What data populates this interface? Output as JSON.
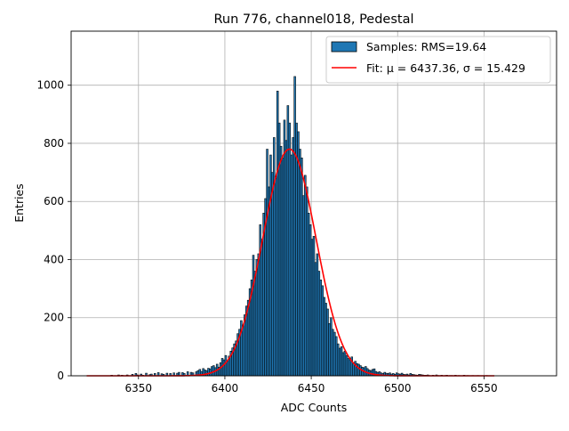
{
  "chart_data": {
    "type": "histogram",
    "title": "Run 776, channel018, Pedestal",
    "xlabel": "ADC Counts",
    "ylabel": "Entries",
    "xlim": [
      6311,
      6592
    ],
    "ylim": [
      0,
      1186
    ],
    "xticks": [
      6350,
      6400,
      6450,
      6500,
      6550
    ],
    "yticks": [
      0,
      200,
      400,
      600,
      800,
      1000
    ],
    "grid": true,
    "legend_position": "top-right",
    "bar_color": "#1f77b4",
    "fit_color": "#ff0000",
    "histogram": {
      "name": "Samples: RMS=19.64",
      "bin_width": 1,
      "bin_starts": [
        6334,
        6335,
        6336,
        6337,
        6338,
        6339,
        6340,
        6341,
        6342,
        6343,
        6344,
        6345,
        6346,
        6347,
        6348,
        6349,
        6350,
        6351,
        6352,
        6353,
        6354,
        6355,
        6356,
        6357,
        6358,
        6359,
        6360,
        6361,
        6362,
        6363,
        6364,
        6365,
        6366,
        6367,
        6368,
        6369,
        6370,
        6371,
        6372,
        6373,
        6374,
        6375,
        6376,
        6377,
        6378,
        6379,
        6380,
        6381,
        6382,
        6383,
        6384,
        6385,
        6386,
        6387,
        6388,
        6389,
        6390,
        6391,
        6392,
        6393,
        6394,
        6395,
        6396,
        6397,
        6398,
        6399,
        6400,
        6401,
        6402,
        6403,
        6404,
        6405,
        6406,
        6407,
        6408,
        6409,
        6410,
        6411,
        6412,
        6413,
        6414,
        6415,
        6416,
        6417,
        6418,
        6419,
        6420,
        6421,
        6422,
        6423,
        6424,
        6425,
        6426,
        6427,
        6428,
        6429,
        6430,
        6431,
        6432,
        6433,
        6434,
        6435,
        6436,
        6437,
        6438,
        6439,
        6440,
        6441,
        6442,
        6443,
        6444,
        6445,
        6446,
        6447,
        6448,
        6449,
        6450,
        6451,
        6452,
        6453,
        6454,
        6455,
        6456,
        6457,
        6458,
        6459,
        6460,
        6461,
        6462,
        6463,
        6464,
        6465,
        6466,
        6467,
        6468,
        6469,
        6470,
        6471,
        6472,
        6473,
        6474,
        6475,
        6476,
        6477,
        6478,
        6479,
        6480,
        6481,
        6482,
        6483,
        6484,
        6485,
        6486,
        6487,
        6488,
        6489,
        6490,
        6491,
        6492,
        6493,
        6494,
        6495,
        6496,
        6497,
        6498,
        6499,
        6500,
        6501,
        6502,
        6503,
        6504,
        6505,
        6506,
        6507,
        6508,
        6509,
        6510,
        6511,
        6512,
        6513,
        6514,
        6515,
        6516,
        6517,
        6518,
        6519,
        6520,
        6521,
        6522,
        6523,
        6524,
        6525,
        6526,
        6527,
        6528,
        6529,
        6530,
        6531,
        6532,
        6533,
        6534,
        6535,
        6536,
        6537,
        6538,
        6539,
        6540,
        6541,
        6542,
        6543,
        6544,
        6545,
        6546,
        6547,
        6548,
        6549,
        6550,
        6551,
        6552,
        6553,
        6554,
        6555,
        6556,
        6557,
        6558,
        6559,
        6560,
        6561,
        6562,
        6563,
        6564,
        6565,
        6566,
        6567,
        6568,
        6569,
        6570,
        6571,
        6572,
        6573,
        6574,
        6575,
        6576,
        6577,
        6578,
        6579,
        6580,
        6581
      ],
      "counts": [
        2,
        0,
        0,
        0,
        3,
        0,
        2,
        0,
        0,
        3,
        0,
        0,
        5,
        0,
        8,
        3,
        0,
        6,
        2,
        0,
        9,
        0,
        4,
        6,
        0,
        8,
        0,
        11,
        0,
        7,
        5,
        0,
        9,
        0,
        8,
        0,
        10,
        0,
        9,
        12,
        0,
        11,
        8,
        0,
        14,
        0,
        12,
        10,
        0,
        14,
        18,
        22,
        15,
        25,
        20,
        18,
        26,
        24,
        32,
        35,
        28,
        40,
        30,
        45,
        60,
        55,
        70,
        52,
        68,
        85,
        96,
        110,
        120,
        145,
        160,
        190,
        175,
        210,
        240,
        260,
        300,
        330,
        415,
        360,
        400,
        420,
        520,
        470,
        560,
        610,
        780,
        650,
        760,
        700,
        820,
        680,
        980,
        870,
        790,
        750,
        880,
        810,
        930,
        870,
        760,
        820,
        1030,
        870,
        840,
        780,
        750,
        620,
        690,
        650,
        560,
        520,
        470,
        480,
        390,
        420,
        360,
        330,
        310,
        270,
        250,
        230,
        180,
        200,
        160,
        150,
        135,
        110,
        95,
        100,
        80,
        85,
        70,
        60,
        55,
        65,
        45,
        50,
        42,
        40,
        35,
        30,
        28,
        32,
        25,
        20,
        18,
        22,
        24,
        15,
        12,
        14,
        10,
        8,
        12,
        9,
        8,
        10,
        6,
        8,
        5,
        10,
        7,
        6,
        9,
        5,
        4,
        6,
        3,
        8,
        5,
        4,
        3,
        2,
        5,
        4,
        3,
        2,
        2,
        3,
        1,
        0,
        2,
        0,
        3,
        1,
        0,
        2,
        0,
        1,
        2,
        0,
        1,
        1,
        0,
        2,
        0,
        1,
        0,
        0,
        2,
        0,
        1,
        0,
        0,
        1,
        0,
        0,
        1,
        0,
        0,
        0,
        0,
        1,
        0,
        0,
        0,
        0,
        0,
        0,
        0,
        0,
        0,
        0,
        0,
        0,
        0,
        0,
        0,
        0,
        0,
        0,
        0,
        0,
        0,
        0,
        0,
        0,
        0,
        0,
        0,
        0,
        0,
        0,
        0,
        0,
        0,
        0,
        0,
        0,
        0,
        0,
        0
      ]
    },
    "fit": {
      "name": "Fit: μ = 6437.36, σ = 15.429",
      "mu": 6437.36,
      "sigma": 15.429,
      "amplitude": 780,
      "x_range": [
        6320,
        6556
      ]
    }
  }
}
